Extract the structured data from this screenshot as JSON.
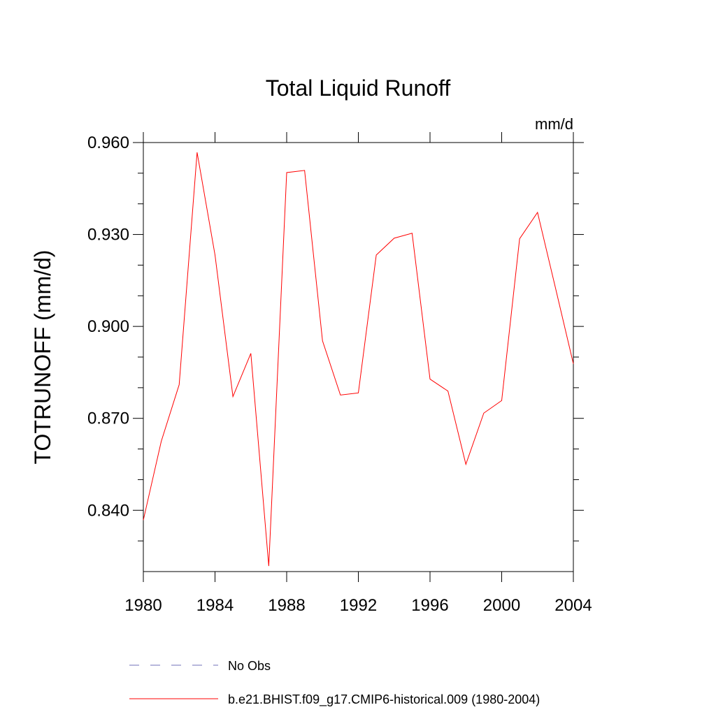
{
  "chart_data": {
    "type": "line",
    "title": "Total Liquid Runoff",
    "units_label": "mm/d",
    "y_label": "TOTRUNOFF  (mm/d)",
    "x": [
      1980,
      1981,
      1982,
      1983,
      1984,
      1985,
      1986,
      1987,
      1988,
      1989,
      1990,
      1991,
      1992,
      1993,
      1994,
      1995,
      1996,
      1997,
      1998,
      1999,
      2000,
      2001,
      2002,
      2003,
      2004
    ],
    "xlim": [
      1980,
      2004
    ],
    "xticks": [
      1980,
      1984,
      1988,
      1992,
      1996,
      2000,
      2004
    ],
    "ylim": [
      0.82,
      0.96
    ],
    "yticks": [
      {
        "value": 0.84,
        "label": "0.840"
      },
      {
        "value": 0.87,
        "label": "0.870"
      },
      {
        "value": 0.9,
        "label": "0.900"
      },
      {
        "value": 0.93,
        "label": "0.930"
      },
      {
        "value": 0.96,
        "label": "0.960"
      }
    ],
    "y_minor_ticks": [
      0.83,
      0.85,
      0.86,
      0.88,
      0.89,
      0.91,
      0.92,
      0.94,
      0.95
    ],
    "series": [
      {
        "name": "No Obs",
        "color": "#7070b8",
        "dashed": true,
        "values": [
          null,
          null,
          null,
          null,
          null,
          null,
          null,
          null,
          null,
          null,
          null,
          null,
          null,
          null,
          null,
          null,
          null,
          null,
          null,
          null,
          null,
          null,
          null,
          null,
          null
        ]
      },
      {
        "name": "b.e21.BHIST.f09_g17.CMIP6-historical.009 (1980-2004)",
        "color": "#ff0000",
        "dashed": false,
        "values": [
          0.8368,
          0.8625,
          0.881,
          0.9568,
          0.9233,
          0.8771,
          0.8912,
          0.8218,
          0.9502,
          0.9509,
          0.8953,
          0.8776,
          0.8783,
          0.9233,
          0.9288,
          0.9304,
          0.8828,
          0.8789,
          0.855,
          0.8717,
          0.8758,
          0.9286,
          0.9372,
          0.9126,
          0.8878
        ]
      }
    ]
  }
}
